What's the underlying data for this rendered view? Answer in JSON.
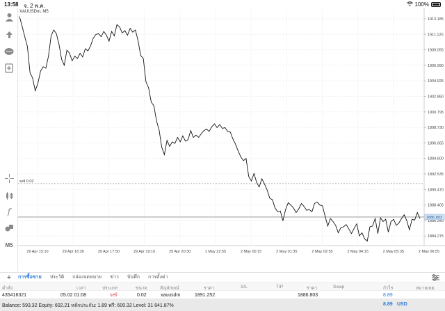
{
  "status_bar": {
    "time": "13:58",
    "date": "จ. 2 พ.ค.",
    "battery": "100%"
  },
  "chart_data": {
    "type": "line",
    "symbol_label": "XAUUSDm, M5",
    "y_ticks": [
      "1913.185",
      "1911.120",
      "1909.055",
      "1906.990",
      "1904.925",
      "1902.860",
      "1900.795",
      "1898.730",
      "1896.665",
      "1894.600",
      "1892.535",
      "1890.470",
      "1888.405",
      "1886.340",
      "1884.275"
    ],
    "ylim": [
      1883.0,
      1914.2
    ],
    "x_ticks": [
      "29 Apr 15:10",
      "29 Apr 16:30",
      "29 Apr 17:50",
      "29 Apr 19:10",
      "29 Apr 20:30",
      "1 May 22:55",
      "2 May 00:15",
      "2 May 01:35",
      "2 May 02:55",
      "2 May 04:15",
      "2 May 05:35",
      "2 May 06:55"
    ],
    "sell_level": {
      "label": "sell 0.02",
      "value": 1891.252
    },
    "current_price": {
      "label": "1886.803",
      "value": 1886.803
    },
    "series": [
      {
        "values": [
          1913.5,
          1912.2,
          1910.8,
          1909.5,
          1906.0,
          1905.3,
          1903.6,
          1904.6,
          1906.2,
          1906.8,
          1906.6,
          1908.2,
          1910.9,
          1911.7,
          1911.2,
          1909.8,
          1907.8,
          1907.0,
          1909.0,
          1908.6,
          1907.6,
          1908.2,
          1907.9,
          1908.6,
          1908.1,
          1909.2,
          1908.9,
          1909.6,
          1910.6,
          1911.1,
          1911.2,
          1910.8,
          1911.5,
          1911.0,
          1910.2,
          1911.5,
          1910.9,
          1912.4,
          1912.1,
          1911.3,
          1911.6,
          1911.0,
          1911.9,
          1911.4,
          1911.7,
          1910.3,
          1908.3,
          1907.9,
          1904.8,
          1904.0,
          1902.1,
          1901.6,
          1899.6,
          1898.4,
          1896.1,
          1895.1,
          1897.0,
          1896.2,
          1896.8,
          1896.6,
          1897.4,
          1896.8,
          1897.6,
          1896.9,
          1897.1,
          1898.3,
          1897.4,
          1897.7,
          1897.4,
          1897.9,
          1898.3,
          1898.5,
          1898.2,
          1898.8,
          1899.2,
          1898.7,
          1899.1,
          1898.6,
          1898.7,
          1898.2,
          1898.1,
          1897.2,
          1896.5,
          1895.6,
          1894.8,
          1894.3,
          1894.6,
          1892.2,
          1891.6,
          1892.6,
          1891.4,
          1890.8,
          1891.9,
          1891.2,
          1890.4,
          1889.3,
          1889.1,
          1888.0,
          1887.5,
          1887.6,
          1886.3,
          1887.8,
          1888.7,
          1888.4,
          1888.0,
          1887.4,
          1887.9,
          1888.6,
          1888.2,
          1887.7,
          1887.8,
          1887.5,
          1888.6,
          1888.8,
          1888.4,
          1888.3,
          1886.9,
          1885.6,
          1886.6,
          1886.2,
          1885.7,
          1884.7,
          1885.4,
          1885.5,
          1885.8,
          1885.2,
          1884.6,
          1885.3,
          1885.9,
          1884.3,
          1884.7,
          1883.9,
          1883.6,
          1885.5,
          1885.6,
          1886.6,
          1884.6,
          1886.7,
          1886.2,
          1886.5,
          1884.8,
          1886.2,
          1886.5,
          1885.7,
          1886.0,
          1886.6,
          1887.1,
          1886.3,
          1885.1,
          1886.5,
          1886.4,
          1887.4,
          1886.6
        ]
      }
    ]
  },
  "sidebar": {
    "tools": [
      {
        "icon": "account-icon"
      },
      {
        "icon": "trade-icon"
      },
      {
        "icon": "chat-icon"
      },
      {
        "icon": "new-order-icon"
      },
      {
        "icon": "crosshair-icon"
      },
      {
        "icon": "chart-type-icon"
      },
      {
        "icon": "indicator-icon"
      },
      {
        "icon": "objects-icon"
      },
      {
        "icon": "timeframe-icon",
        "label": "M5"
      }
    ]
  },
  "tabs": [
    {
      "label": "การซื้อขาย",
      "active": true
    },
    {
      "label": "ประวัติ"
    },
    {
      "label": "กล่องจดหมาย"
    },
    {
      "label": "ข่าว"
    },
    {
      "label": "บันทึก"
    },
    {
      "label": "การตั้งค่า"
    }
  ],
  "table": {
    "headers": [
      "คำสั่ง",
      "เวลา",
      "ประเภท",
      "ขนาด",
      "สัญลักษณ์",
      "ราคา",
      "S/L",
      "T/P",
      "ราคา",
      "Swap",
      "กำไร",
      "หมายเหตุ"
    ],
    "rows": [
      {
        "order": "435416321",
        "time": "05.02 01:08",
        "type": "sell",
        "size": "0.02",
        "symbol": "xauusdm",
        "price_open": "1891.252",
        "sl": "",
        "tp": "",
        "price_current": "1886.803",
        "swap": "",
        "profit": "8.89",
        "comment": ""
      }
    ]
  },
  "balance": {
    "summary": "Balance: 593.32  Equity: 602.21  หลักประกัน: 1.89  ฟรี: 600.32  Level: 31 841.87%",
    "total_profit": "8.89",
    "currency": "USD"
  },
  "colors": {
    "accent": "#2a7ad8",
    "sell": "#e14a4a",
    "price_tag": "#d6e6f7"
  }
}
